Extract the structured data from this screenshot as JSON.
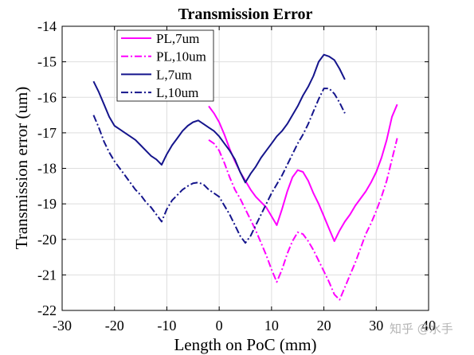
{
  "chart_data": {
    "type": "line",
    "title": "Transmission Error",
    "xlabel": "Length on PoC (mm)",
    "ylabel": "Transmission error (um)",
    "xlim": [
      -30,
      40
    ],
    "ylim": [
      -22,
      -14
    ],
    "xticks": [
      "-30",
      "-20",
      "-10",
      "0",
      "10",
      "20",
      "30",
      "40"
    ],
    "yticks": [
      "-14",
      "-15",
      "-16",
      "-17",
      "-18",
      "-19",
      "-20",
      "-21",
      "-22"
    ],
    "grid": true,
    "legend": "top-left",
    "series": [
      {
        "name": "PL,7um",
        "color": "#ff00ff",
        "style": "solid",
        "x": [
          -2,
          -1,
          0,
          1,
          2,
          3,
          4,
          5,
          6,
          7,
          8,
          9,
          10,
          11,
          12,
          13,
          14,
          15,
          16,
          17,
          18,
          19,
          20,
          21,
          22,
          23,
          24,
          25,
          26,
          27,
          28,
          29,
          30,
          31,
          32,
          33,
          34
        ],
        "y": [
          -16.25,
          -16.45,
          -16.7,
          -17.05,
          -17.45,
          -17.8,
          -18.1,
          -18.35,
          -18.6,
          -18.8,
          -18.95,
          -19.1,
          -19.35,
          -19.6,
          -19.15,
          -18.65,
          -18.25,
          -18.05,
          -18.1,
          -18.35,
          -18.7,
          -19.0,
          -19.35,
          -19.7,
          -20.05,
          -19.75,
          -19.5,
          -19.3,
          -19.05,
          -18.85,
          -18.65,
          -18.4,
          -18.1,
          -17.7,
          -17.2,
          -16.55,
          -16.2
        ]
      },
      {
        "name": "PL,10um",
        "color": "#ff00ff",
        "style": "dashdot",
        "x": [
          -2,
          -1,
          0,
          1,
          2,
          3,
          4,
          5,
          6,
          7,
          8,
          9,
          10,
          11,
          12,
          13,
          14,
          15,
          16,
          17,
          18,
          19,
          20,
          21,
          22,
          23,
          24,
          25,
          26,
          27,
          28,
          29,
          30,
          31,
          32,
          33,
          34
        ],
        "y": [
          -17.2,
          -17.3,
          -17.5,
          -17.85,
          -18.25,
          -18.6,
          -18.85,
          -19.15,
          -19.45,
          -19.75,
          -20.1,
          -20.45,
          -20.85,
          -21.2,
          -20.85,
          -20.4,
          -20.05,
          -19.8,
          -19.85,
          -20.05,
          -20.3,
          -20.6,
          -20.9,
          -21.2,
          -21.55,
          -21.7,
          -21.35,
          -21.0,
          -20.65,
          -20.25,
          -19.85,
          -19.55,
          -19.2,
          -18.8,
          -18.35,
          -17.75,
          -17.15
        ]
      },
      {
        "name": "L,7um",
        "color": "#15158c",
        "style": "solid",
        "x": [
          -24,
          -23,
          -22,
          -21,
          -20,
          -19,
          -18,
          -17,
          -16,
          -15,
          -14,
          -13,
          -12,
          -11,
          -10,
          -9,
          -8,
          -7,
          -6,
          -5,
          -4,
          -3,
          -2,
          -1,
          0,
          1,
          2,
          3,
          4,
          5,
          6,
          7,
          8,
          9,
          10,
          11,
          12,
          13,
          14,
          15,
          16,
          17,
          18,
          19,
          20,
          21,
          22,
          23,
          24
        ],
        "y": [
          -15.55,
          -15.85,
          -16.2,
          -16.55,
          -16.8,
          -16.9,
          -17.0,
          -17.1,
          -17.2,
          -17.35,
          -17.5,
          -17.65,
          -17.75,
          -17.9,
          -17.6,
          -17.35,
          -17.15,
          -16.95,
          -16.8,
          -16.7,
          -16.65,
          -16.75,
          -16.85,
          -16.95,
          -17.1,
          -17.3,
          -17.5,
          -17.75,
          -18.1,
          -18.4,
          -18.15,
          -17.95,
          -17.7,
          -17.5,
          -17.3,
          -17.1,
          -16.95,
          -16.75,
          -16.5,
          -16.25,
          -15.95,
          -15.7,
          -15.4,
          -15.0,
          -14.8,
          -14.85,
          -14.95,
          -15.2,
          -15.5
        ]
      },
      {
        "name": "L,10um",
        "color": "#15158c",
        "style": "dashdot",
        "x": [
          -24,
          -23,
          -22,
          -21,
          -20,
          -19,
          -18,
          -17,
          -16,
          -15,
          -14,
          -13,
          -12,
          -11,
          -10,
          -9,
          -8,
          -7,
          -6,
          -5,
          -4,
          -3,
          -2,
          -1,
          0,
          1,
          2,
          3,
          4,
          5,
          6,
          7,
          8,
          9,
          10,
          11,
          12,
          13,
          14,
          15,
          16,
          17,
          18,
          19,
          20,
          21,
          22,
          23,
          24
        ],
        "y": [
          -16.5,
          -16.85,
          -17.25,
          -17.55,
          -17.8,
          -18.0,
          -18.2,
          -18.4,
          -18.6,
          -18.75,
          -18.95,
          -19.1,
          -19.3,
          -19.5,
          -19.15,
          -18.9,
          -18.75,
          -18.6,
          -18.5,
          -18.42,
          -18.4,
          -18.45,
          -18.6,
          -18.7,
          -18.8,
          -19.05,
          -19.3,
          -19.6,
          -19.9,
          -20.1,
          -19.9,
          -19.6,
          -19.3,
          -19.0,
          -18.7,
          -18.45,
          -18.2,
          -17.9,
          -17.6,
          -17.3,
          -17.05,
          -16.75,
          -16.4,
          -16.05,
          -15.75,
          -15.75,
          -15.9,
          -16.15,
          -16.45
        ]
      }
    ]
  },
  "watermark": "知乎 @水手"
}
